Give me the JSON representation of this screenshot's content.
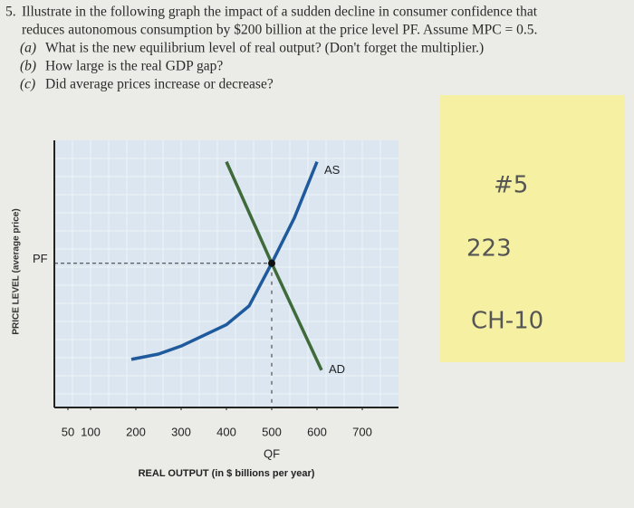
{
  "question": {
    "number": "5.",
    "lines": [
      "Illustrate in the following graph the impact of a sudden decline in consumer confidence that",
      "reduces autonomous consumption by $200 billion at the price level PF. Assume MPC = 0.5."
    ],
    "parts": [
      {
        "label": "(a)",
        "text": "What is the new equilibrium level of real output? (Don't forget the multiplier.)"
      },
      {
        "label": "(b)",
        "text": "How large is the real GDP gap?"
      },
      {
        "label": "(c)",
        "text": "Did average prices increase or decrease?"
      }
    ]
  },
  "chart_data": {
    "type": "line",
    "x_label": "REAL OUTPUT (in $ billions per year)",
    "y_label": "PRICE LEVEL (average price)",
    "xlim": [
      20,
      780
    ],
    "xticks": [
      50,
      100,
      200,
      300,
      400,
      500,
      600,
      700
    ],
    "ylim": [
      0,
      100
    ],
    "yticks": [
      {
        "value": 54,
        "label": "PF"
      }
    ],
    "annotations": [
      {
        "text": "QF",
        "x": 500
      }
    ],
    "series": [
      {
        "name": "AS",
        "color": "#1e5a9c",
        "x": [
          190,
          250,
          300,
          400,
          450,
          500,
          550,
          600
        ],
        "values": [
          18,
          20,
          23,
          31,
          38,
          54,
          71,
          92
        ]
      },
      {
        "name": "AD",
        "color": "#3f6b3a",
        "x": [
          400,
          500,
          610
        ],
        "values": [
          92,
          54,
          14
        ]
      }
    ]
  },
  "sticky_note": {
    "lines": [
      "#5",
      "223",
      "CH-10"
    ]
  }
}
